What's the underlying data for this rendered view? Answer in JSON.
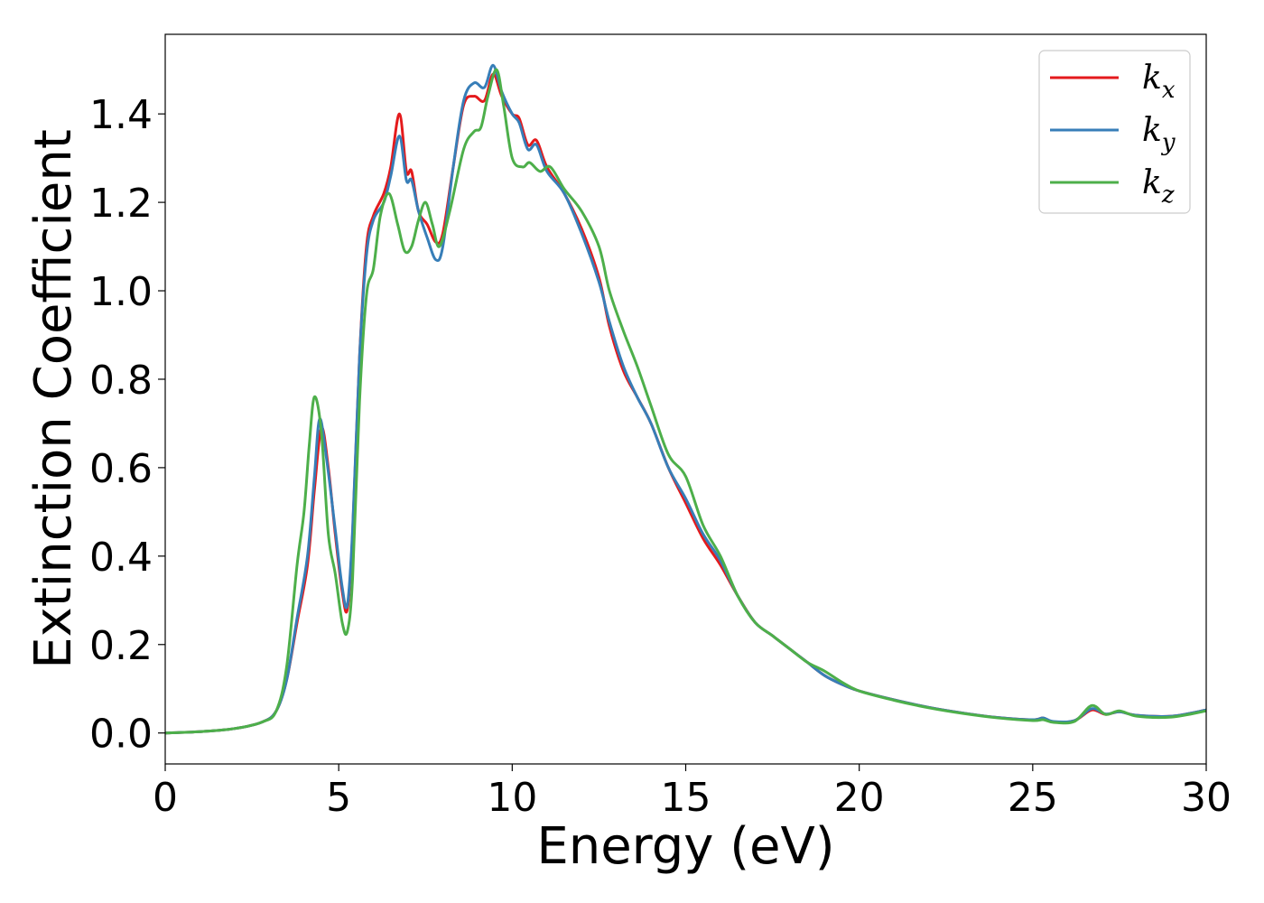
{
  "chart_data": {
    "type": "line",
    "title": "",
    "xlabel": "Energy (eV)",
    "ylabel": "Extinction Coefficient",
    "xlim": [
      0,
      30
    ],
    "ylim": [
      -0.07,
      1.58
    ],
    "xticks": [
      0,
      5,
      10,
      15,
      20,
      25,
      30
    ],
    "yticks": [
      0.0,
      0.2,
      0.4,
      0.6,
      0.8,
      1.0,
      1.2,
      1.4
    ],
    "ytick_labels": [
      "0.0",
      "0.2",
      "0.4",
      "0.6",
      "0.8",
      "1.0",
      "1.2",
      "1.4"
    ],
    "xtick_labels": [
      "0",
      "5",
      "10",
      "15",
      "20",
      "25",
      "30"
    ],
    "grid": false,
    "legend_position": "top-right",
    "series": [
      {
        "name": "kx",
        "name_base": "k",
        "name_sub": "x",
        "color": "#e41a1c",
        "points": [
          [
            0,
            0.0
          ],
          [
            1,
            0.003
          ],
          [
            2,
            0.01
          ],
          [
            2.8,
            0.025
          ],
          [
            3.2,
            0.05
          ],
          [
            3.5,
            0.12
          ],
          [
            3.8,
            0.25
          ],
          [
            4.1,
            0.38
          ],
          [
            4.3,
            0.55
          ],
          [
            4.5,
            0.69
          ],
          [
            4.7,
            0.6
          ],
          [
            4.9,
            0.45
          ],
          [
            5.1,
            0.32
          ],
          [
            5.25,
            0.28
          ],
          [
            5.4,
            0.45
          ],
          [
            5.6,
            0.85
          ],
          [
            5.8,
            1.1
          ],
          [
            6.0,
            1.17
          ],
          [
            6.3,
            1.22
          ],
          [
            6.5,
            1.28
          ],
          [
            6.75,
            1.4
          ],
          [
            6.95,
            1.27
          ],
          [
            7.1,
            1.27
          ],
          [
            7.3,
            1.18
          ],
          [
            7.55,
            1.15
          ],
          [
            7.8,
            1.11
          ],
          [
            8.0,
            1.13
          ],
          [
            8.3,
            1.28
          ],
          [
            8.6,
            1.42
          ],
          [
            8.9,
            1.44
          ],
          [
            9.2,
            1.43
          ],
          [
            9.45,
            1.49
          ],
          [
            9.7,
            1.44
          ],
          [
            10.0,
            1.4
          ],
          [
            10.2,
            1.39
          ],
          [
            10.45,
            1.33
          ],
          [
            10.7,
            1.34
          ],
          [
            11.0,
            1.28
          ],
          [
            11.5,
            1.22
          ],
          [
            12.0,
            1.14
          ],
          [
            12.5,
            1.03
          ],
          [
            12.8,
            0.92
          ],
          [
            13.2,
            0.82
          ],
          [
            13.6,
            0.76
          ],
          [
            14.0,
            0.7
          ],
          [
            14.5,
            0.6
          ],
          [
            15.0,
            0.52
          ],
          [
            15.5,
            0.44
          ],
          [
            16.0,
            0.38
          ],
          [
            16.5,
            0.31
          ],
          [
            17.0,
            0.25
          ],
          [
            17.5,
            0.22
          ],
          [
            18.0,
            0.19
          ],
          [
            18.5,
            0.16
          ],
          [
            19.0,
            0.13
          ],
          [
            19.5,
            0.11
          ],
          [
            20,
            0.095
          ],
          [
            21,
            0.075
          ],
          [
            22,
            0.058
          ],
          [
            23,
            0.045
          ],
          [
            24,
            0.035
          ],
          [
            25,
            0.03
          ],
          [
            25.3,
            0.034
          ],
          [
            25.6,
            0.025
          ],
          [
            26.2,
            0.028
          ],
          [
            26.7,
            0.052
          ],
          [
            27.1,
            0.042
          ],
          [
            27.5,
            0.048
          ],
          [
            28,
            0.04
          ],
          [
            29,
            0.038
          ],
          [
            30,
            0.052
          ]
        ]
      },
      {
        "name": "ky",
        "name_base": "k",
        "name_sub": "y",
        "color": "#377eb8",
        "points": [
          [
            0,
            0.0
          ],
          [
            1,
            0.003
          ],
          [
            2,
            0.01
          ],
          [
            2.8,
            0.025
          ],
          [
            3.2,
            0.05
          ],
          [
            3.5,
            0.12
          ],
          [
            3.8,
            0.26
          ],
          [
            4.1,
            0.4
          ],
          [
            4.3,
            0.58
          ],
          [
            4.45,
            0.71
          ],
          [
            4.65,
            0.62
          ],
          [
            4.9,
            0.46
          ],
          [
            5.1,
            0.33
          ],
          [
            5.25,
            0.29
          ],
          [
            5.4,
            0.46
          ],
          [
            5.6,
            0.85
          ],
          [
            5.8,
            1.08
          ],
          [
            6.0,
            1.16
          ],
          [
            6.3,
            1.2
          ],
          [
            6.5,
            1.26
          ],
          [
            6.75,
            1.35
          ],
          [
            6.95,
            1.25
          ],
          [
            7.1,
            1.25
          ],
          [
            7.3,
            1.18
          ],
          [
            7.55,
            1.12
          ],
          [
            7.8,
            1.07
          ],
          [
            8.0,
            1.1
          ],
          [
            8.3,
            1.28
          ],
          [
            8.6,
            1.43
          ],
          [
            8.9,
            1.47
          ],
          [
            9.2,
            1.46
          ],
          [
            9.45,
            1.51
          ],
          [
            9.7,
            1.45
          ],
          [
            10.0,
            1.4
          ],
          [
            10.2,
            1.38
          ],
          [
            10.45,
            1.32
          ],
          [
            10.7,
            1.33
          ],
          [
            11.0,
            1.27
          ],
          [
            11.5,
            1.22
          ],
          [
            12.0,
            1.13
          ],
          [
            12.5,
            1.02
          ],
          [
            12.8,
            0.93
          ],
          [
            13.2,
            0.83
          ],
          [
            13.6,
            0.76
          ],
          [
            14.0,
            0.7
          ],
          [
            14.5,
            0.6
          ],
          [
            15.0,
            0.53
          ],
          [
            15.5,
            0.45
          ],
          [
            16.0,
            0.39
          ],
          [
            16.5,
            0.31
          ],
          [
            17.0,
            0.25
          ],
          [
            17.5,
            0.22
          ],
          [
            18.0,
            0.19
          ],
          [
            18.5,
            0.16
          ],
          [
            19.0,
            0.13
          ],
          [
            19.5,
            0.11
          ],
          [
            20,
            0.095
          ],
          [
            21,
            0.075
          ],
          [
            22,
            0.058
          ],
          [
            23,
            0.045
          ],
          [
            24,
            0.035
          ],
          [
            25,
            0.03
          ],
          [
            25.3,
            0.034
          ],
          [
            25.6,
            0.026
          ],
          [
            26.2,
            0.028
          ],
          [
            26.7,
            0.055
          ],
          [
            27.1,
            0.043
          ],
          [
            27.5,
            0.048
          ],
          [
            28,
            0.04
          ],
          [
            29,
            0.038
          ],
          [
            30,
            0.052
          ]
        ]
      },
      {
        "name": "kz",
        "name_base": "k",
        "name_sub": "z",
        "color": "#4daf4a",
        "points": [
          [
            0,
            0.0
          ],
          [
            1,
            0.003
          ],
          [
            2,
            0.01
          ],
          [
            2.8,
            0.025
          ],
          [
            3.2,
            0.05
          ],
          [
            3.5,
            0.15
          ],
          [
            3.8,
            0.38
          ],
          [
            4.0,
            0.5
          ],
          [
            4.15,
            0.65
          ],
          [
            4.3,
            0.76
          ],
          [
            4.5,
            0.68
          ],
          [
            4.7,
            0.45
          ],
          [
            4.9,
            0.36
          ],
          [
            5.1,
            0.25
          ],
          [
            5.25,
            0.23
          ],
          [
            5.4,
            0.35
          ],
          [
            5.6,
            0.75
          ],
          [
            5.8,
            0.99
          ],
          [
            6.0,
            1.05
          ],
          [
            6.2,
            1.17
          ],
          [
            6.45,
            1.22
          ],
          [
            6.7,
            1.15
          ],
          [
            6.9,
            1.09
          ],
          [
            7.1,
            1.1
          ],
          [
            7.3,
            1.16
          ],
          [
            7.5,
            1.2
          ],
          [
            7.7,
            1.15
          ],
          [
            7.9,
            1.1
          ],
          [
            8.2,
            1.18
          ],
          [
            8.6,
            1.32
          ],
          [
            8.9,
            1.36
          ],
          [
            9.1,
            1.37
          ],
          [
            9.3,
            1.44
          ],
          [
            9.55,
            1.5
          ],
          [
            9.75,
            1.42
          ],
          [
            10.0,
            1.3
          ],
          [
            10.3,
            1.28
          ],
          [
            10.5,
            1.29
          ],
          [
            10.8,
            1.27
          ],
          [
            11.1,
            1.28
          ],
          [
            11.5,
            1.23
          ],
          [
            12.0,
            1.18
          ],
          [
            12.5,
            1.1
          ],
          [
            12.8,
            1.0
          ],
          [
            13.2,
            0.91
          ],
          [
            13.6,
            0.83
          ],
          [
            14.0,
            0.74
          ],
          [
            14.5,
            0.63
          ],
          [
            15.0,
            0.58
          ],
          [
            15.5,
            0.47
          ],
          [
            16.0,
            0.4
          ],
          [
            16.5,
            0.31
          ],
          [
            17.0,
            0.25
          ],
          [
            17.5,
            0.22
          ],
          [
            18.0,
            0.19
          ],
          [
            18.5,
            0.16
          ],
          [
            19.0,
            0.14
          ],
          [
            19.5,
            0.115
          ],
          [
            20,
            0.095
          ],
          [
            21,
            0.074
          ],
          [
            22,
            0.057
          ],
          [
            23,
            0.044
          ],
          [
            24,
            0.034
          ],
          [
            25,
            0.028
          ],
          [
            25.3,
            0.03
          ],
          [
            25.6,
            0.024
          ],
          [
            26.2,
            0.026
          ],
          [
            26.7,
            0.062
          ],
          [
            27.1,
            0.042
          ],
          [
            27.5,
            0.05
          ],
          [
            28,
            0.038
          ],
          [
            29,
            0.036
          ],
          [
            30,
            0.05
          ]
        ]
      }
    ]
  }
}
